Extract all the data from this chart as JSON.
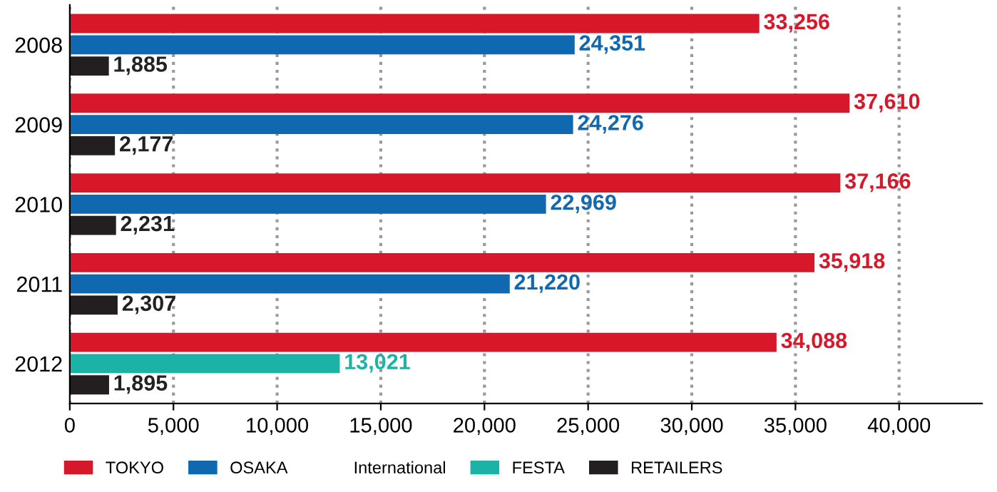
{
  "chart_data": {
    "type": "bar",
    "orientation": "horizontal",
    "categories": [
      "2008",
      "2009",
      "2010",
      "2011",
      "2012"
    ],
    "series": [
      {
        "name": "TOKYO",
        "color": "#d7182a",
        "values": [
          33256,
          37610,
          37166,
          35918,
          34088
        ],
        "value_labels": [
          "33,256",
          "37,610",
          "37,166",
          "35,918",
          "34,088"
        ]
      },
      {
        "name": "OSAKA",
        "color": "#0f68b0",
        "values": [
          24351,
          24276,
          22969,
          21220,
          null
        ],
        "value_labels": [
          "24,351",
          "24,276",
          "22,969",
          "21,220",
          null
        ]
      },
      {
        "name": "FESTA",
        "color": "#1bb3a6",
        "values": [
          null,
          null,
          null,
          null,
          13021
        ],
        "value_labels": [
          null,
          null,
          null,
          null,
          "13,021"
        ]
      },
      {
        "name": "RETAILERS",
        "color": "#231f20",
        "values": [
          1885,
          2177,
          2231,
          2307,
          1895
        ],
        "value_labels": [
          "1,885",
          "2,177",
          "2,231",
          "2,307",
          "1,895"
        ]
      }
    ],
    "annotations": [
      "International"
    ],
    "xlim": [
      0,
      44000
    ],
    "xticks": [
      {
        "value": 0,
        "label": "0"
      },
      {
        "value": 5000,
        "label": "5,000"
      },
      {
        "value": 10000,
        "label": "10,000"
      },
      {
        "value": 15000,
        "label": "15,000"
      },
      {
        "value": 20000,
        "label": "20,000"
      },
      {
        "value": 25000,
        "label": "25,000"
      },
      {
        "value": 30000,
        "label": "30,000"
      },
      {
        "value": 35000,
        "label": "35,000"
      },
      {
        "value": 40000,
        "label": "40,000"
      }
    ],
    "grid": "x",
    "legend": "bottom"
  }
}
